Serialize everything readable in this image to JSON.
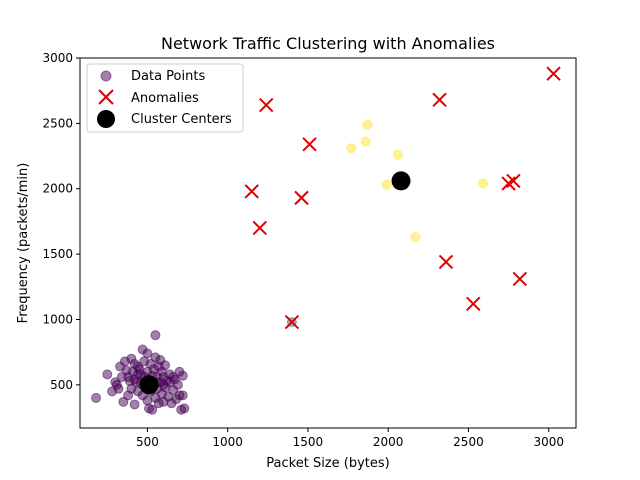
{
  "chart_data": {
    "type": "scatter",
    "title": "Network Traffic Clustering with Anomalies",
    "xlabel": "Packet Size (bytes)",
    "ylabel": "Frequency (packets/min)",
    "xlim": [
      80,
      3170
    ],
    "ylim": [
      170,
      3000
    ],
    "xticks": [
      500,
      1000,
      1500,
      2000,
      2500,
      3000
    ],
    "yticks": [
      500,
      1000,
      1500,
      2000,
      2500,
      3000
    ],
    "grid": false,
    "legend_position": "top-left",
    "legend": [
      "Data Points",
      "Anomalies",
      "Cluster Centers"
    ],
    "colors": {
      "cluster_a": "#440154",
      "cluster_b": "#fde725",
      "anomaly": "#e00000",
      "center": "#000000",
      "outlier": "#31688e"
    },
    "series": [
      {
        "name": "Data Points",
        "marker": "circle",
        "clusters": [
          {
            "color": "#440154",
            "points": [
              [
                180,
                400
              ],
              [
                250,
                580
              ],
              [
                280,
                450
              ],
              [
                300,
                520
              ],
              [
                310,
                500
              ],
              [
                320,
                470
              ],
              [
                330,
                640
              ],
              [
                340,
                560
              ],
              [
                350,
                370
              ],
              [
                360,
                680
              ],
              [
                370,
                610
              ],
              [
                380,
                420
              ],
              [
                390,
                530
              ],
              [
                400,
                700
              ],
              [
                400,
                470
              ],
              [
                410,
                600
              ],
              [
                420,
                350
              ],
              [
                420,
                660
              ],
              [
                430,
                520
              ],
              [
                440,
                450
              ],
              [
                440,
                580
              ],
              [
                450,
                620
              ],
              [
                460,
                510
              ],
              [
                470,
                770
              ],
              [
                470,
                420
              ],
              [
                480,
                680
              ],
              [
                480,
                560
              ],
              [
                490,
                480
              ],
              [
                500,
                740
              ],
              [
                500,
                600
              ],
              [
                500,
                380
              ],
              [
                510,
                540
              ],
              [
                510,
                320
              ],
              [
                520,
                660
              ],
              [
                520,
                450
              ],
              [
                530,
                570
              ],
              [
                530,
                310
              ],
              [
                540,
                620
              ],
              [
                540,
                490
              ],
              [
                550,
                880
              ],
              [
                550,
                710
              ],
              [
                550,
                400
              ],
              [
                560,
                560
              ],
              [
                560,
                470
              ],
              [
                570,
                640
              ],
              [
                570,
                360
              ],
              [
                580,
                520
              ],
              [
                580,
                690
              ],
              [
                590,
                600
              ],
              [
                590,
                430
              ],
              [
                600,
                560
              ],
              [
                600,
                370
              ],
              [
                610,
                650
              ],
              [
                610,
                480
              ],
              [
                620,
                530
              ],
              [
                630,
                410
              ],
              [
                640,
                580
              ],
              [
                650,
                360
              ],
              [
                660,
                460
              ],
              [
                670,
                540
              ],
              [
                680,
                390
              ],
              [
                690,
                500
              ],
              [
                700,
                600
              ],
              [
                700,
                420
              ],
              [
                710,
                310
              ],
              [
                720,
                570
              ],
              [
                720,
                420
              ],
              [
                730,
                320
              ],
              [
                460,
                580
              ],
              [
                440,
                640
              ],
              [
                520,
                520
              ],
              [
                480,
                500
              ],
              [
                560,
                520
              ],
              [
                420,
                540
              ],
              [
                380,
                560
              ],
              [
                600,
                500
              ],
              [
                640,
                520
              ],
              [
                660,
                560
              ]
            ]
          },
          {
            "color": "#fde725",
            "points": [
              [
                1770,
                2310
              ],
              [
                1860,
                2360
              ],
              [
                1870,
                2490
              ],
              [
                1990,
                2030
              ],
              [
                2060,
                2260
              ],
              [
                2080,
                2030
              ],
              [
                2170,
                1630
              ],
              [
                2590,
                2040
              ]
            ]
          },
          {
            "color": "#31688e",
            "points": [
              [
                1400,
                980
              ]
            ]
          }
        ]
      },
      {
        "name": "Anomalies",
        "marker": "x",
        "color": "#e00000",
        "points": [
          [
            1150,
            1980
          ],
          [
            1200,
            1700
          ],
          [
            1240,
            2640
          ],
          [
            1400,
            980
          ],
          [
            1460,
            1930
          ],
          [
            1510,
            2340
          ],
          [
            2320,
            2680
          ],
          [
            2360,
            1440
          ],
          [
            2530,
            1120
          ],
          [
            2750,
            2040
          ],
          [
            2780,
            2060
          ],
          [
            2820,
            1310
          ],
          [
            3030,
            2880
          ]
        ]
      },
      {
        "name": "Cluster Centers",
        "marker": "circle",
        "color": "#000000",
        "points": [
          [
            510,
            500
          ],
          [
            2080,
            2060
          ]
        ]
      }
    ]
  }
}
